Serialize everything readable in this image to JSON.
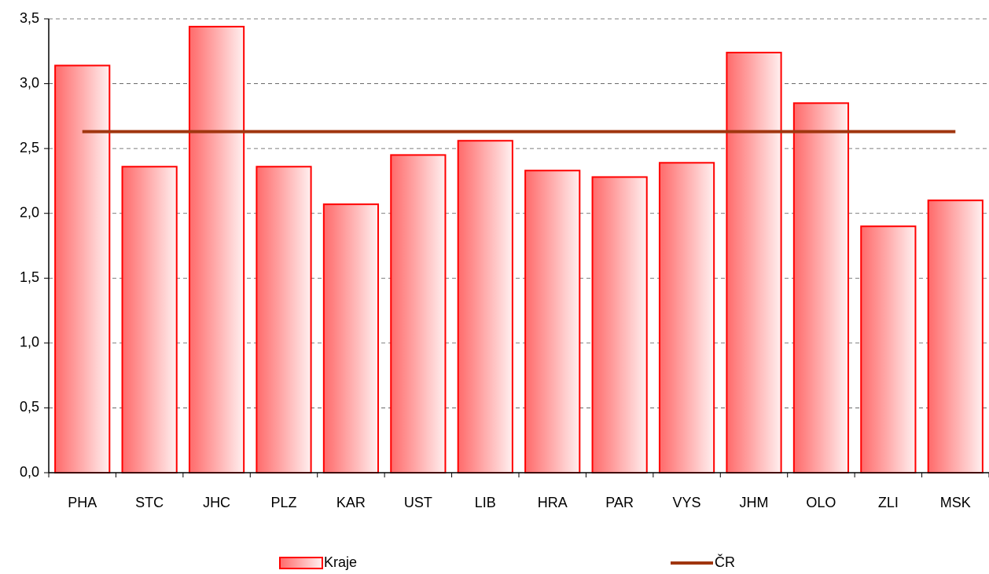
{
  "chart_data": {
    "type": "bar",
    "categories": [
      "PHA",
      "STC",
      "JHC",
      "PLZ",
      "KAR",
      "UST",
      "LIB",
      "HRA",
      "PAR",
      "VYS",
      "JHM",
      "OLO",
      "ZLI",
      "MSK"
    ],
    "series": [
      {
        "name": "Kraje",
        "type": "bar",
        "color": "#ff0000",
        "values": [
          3.14,
          2.36,
          3.44,
          2.36,
          2.07,
          2.45,
          2.56,
          2.33,
          2.28,
          2.39,
          3.24,
          2.85,
          1.9,
          2.1
        ]
      },
      {
        "name": "ČR",
        "type": "line",
        "color": "#a0360f",
        "values": [
          2.63,
          2.63,
          2.63,
          2.63,
          2.63,
          2.63,
          2.63,
          2.63,
          2.63,
          2.63,
          2.63,
          2.63,
          2.63,
          2.63
        ]
      }
    ],
    "ylim": [
      0,
      3.5
    ],
    "yticks": [
      {
        "value": 0,
        "label": "0,0"
      },
      {
        "value": 0.5,
        "label": "0,5"
      },
      {
        "value": 1,
        "label": "1,0"
      },
      {
        "value": 1.5,
        "label": "1,5"
      },
      {
        "value": 2,
        "label": "2,0"
      },
      {
        "value": 2.5,
        "label": "2,5"
      },
      {
        "value": 3,
        "label": "3,0"
      },
      {
        "value": 3.5,
        "label": "3,5"
      }
    ],
    "grid": true
  }
}
